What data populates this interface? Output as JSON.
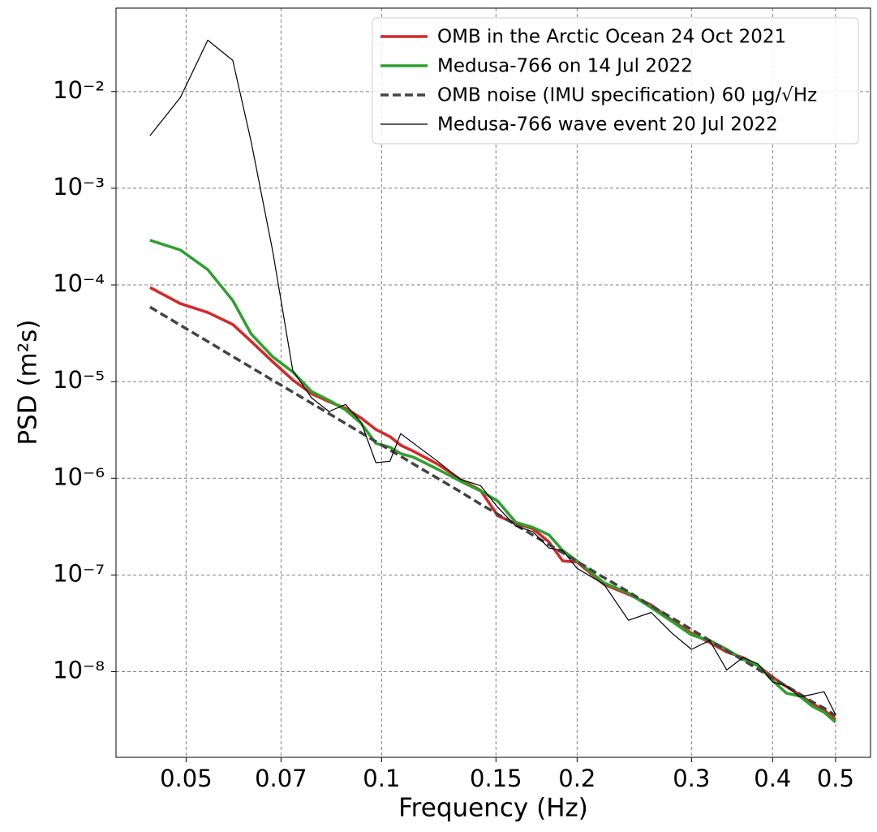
{
  "chart_data": {
    "type": "line",
    "xlabel": "Frequency (Hz)",
    "ylabel": "PSD (m²s)",
    "xscale": "log",
    "yscale": "log",
    "xlim": [
      0.039,
      0.566
    ],
    "ylim": [
      1.3e-09,
      0.073
    ],
    "xticks": [
      0.05,
      0.07,
      0.1,
      0.15,
      0.2,
      0.3,
      0.4,
      0.5
    ],
    "yticks": [
      {
        "value": 1e-08,
        "label": "10⁻⁸"
      },
      {
        "value": 1e-07,
        "label": "10⁻⁷"
      },
      {
        "value": 1e-06,
        "label": "10⁻⁶"
      },
      {
        "value": 1e-05,
        "label": "10⁻⁵"
      },
      {
        "value": 0.0001,
        "label": "10⁻⁴"
      },
      {
        "value": 0.001,
        "label": "10⁻³"
      },
      {
        "value": 0.01,
        "label": "10⁻²"
      }
    ],
    "grid": true,
    "legend": "upper right",
    "x": [
      0.044,
      0.049,
      0.054,
      0.059,
      0.063,
      0.068,
      0.073,
      0.078,
      0.083,
      0.088,
      0.093,
      0.098,
      0.103,
      0.107,
      0.112,
      0.122,
      0.132,
      0.142,
      0.151,
      0.161,
      0.171,
      0.181,
      0.19,
      0.2,
      0.22,
      0.24,
      0.26,
      0.28,
      0.3,
      0.32,
      0.34,
      0.36,
      0.38,
      0.4,
      0.42,
      0.44,
      0.46,
      0.48,
      0.5
    ],
    "series": [
      {
        "name": "OMB in the Arctic Ocean 24 Oct 2021",
        "color": "#d62728",
        "linewidth": 3.5,
        "dashed": false,
        "values": [
          9.4e-05,
          6.4e-05,
          5.2e-05,
          3.9e-05,
          2.6e-05,
          1.6e-05,
          1.04e-05,
          7.5e-06,
          6.2e-06,
          5.3e-06,
          4.2e-06,
          3.2e-06,
          2.7e-06,
          2.2e-06,
          1.9e-06,
          1.4e-06,
          9.8e-07,
          7.5e-07,
          4.1e-07,
          3.4e-07,
          3e-07,
          2.2e-07,
          1.4e-07,
          1.36e-07,
          8e-08,
          6.3e-08,
          4.9e-08,
          3.4e-08,
          2.5e-08,
          2e-08,
          1.6e-08,
          1.4e-08,
          1.15e-08,
          8.8e-09,
          7e-09,
          5.8e-09,
          4.7e-09,
          4e-09,
          3.2e-09
        ]
      },
      {
        "name": "Medusa-766 on 14 Jul 2022",
        "color": "#2ca02c",
        "linewidth": 3.5,
        "dashed": false,
        "values": [
          0.00029,
          0.00023,
          0.000144,
          6.9e-05,
          3.1e-05,
          1.8e-05,
          1.26e-05,
          7.9e-06,
          6.4e-06,
          5.1e-06,
          3.7e-06,
          2.3e-06,
          2.1e-06,
          1.8e-06,
          1.65e-06,
          1.24e-06,
          9.4e-07,
          7.4e-07,
          5.8e-07,
          3.5e-07,
          3.1e-07,
          2.6e-07,
          1.8e-07,
          1.4e-07,
          8.3e-08,
          6.5e-08,
          4.6e-08,
          3.3e-08,
          2.4e-08,
          2.1e-08,
          1.7e-08,
          1.34e-08,
          1.15e-08,
          8.1e-09,
          6e-09,
          5.6e-09,
          4.4e-09,
          3.8e-09,
          3e-09
        ]
      },
      {
        "name": "OMB noise (IMU specification) 60 µg/√Hz",
        "color": "#444444",
        "linewidth": 3.5,
        "dashed": true,
        "values": [
          5.9e-05,
          3.83e-05,
          2.6e-05,
          1.82e-05,
          1.4e-05,
          1.03e-05,
          7.8e-06,
          5.97e-06,
          4.66e-06,
          3.69e-06,
          2.95e-06,
          2.4e-06,
          1.96e-06,
          1.69e-06,
          1.4e-06,
          1e-06,
          7.3e-07,
          5.4e-07,
          4.25e-07,
          3.29e-07,
          2.58e-07,
          2.06e-07,
          1.7e-07,
          1.38e-07,
          9.4e-08,
          6.7e-08,
          4.8e-08,
          3.6e-08,
          2.73e-08,
          2.1e-08,
          1.65e-08,
          1.32e-08,
          1.06e-08,
          8.6e-09,
          7.1e-09,
          5.9e-09,
          4.9e-09,
          4.2e-09,
          3.5e-09
        ]
      },
      {
        "name": "Medusa-766 wave event 20 Jul 2022",
        "color": "#000000",
        "linewidth": 1.2,
        "dashed": false,
        "values": [
          0.0035,
          0.0087,
          0.034,
          0.021,
          0.003,
          0.00022,
          1.3e-05,
          6.8e-06,
          4.9e-06,
          5.8e-06,
          3.8e-06,
          1.45e-06,
          1.5e-06,
          2.9e-06,
          2.3e-06,
          1.5e-06,
          9.8e-07,
          8.4e-07,
          5e-07,
          3.2e-07,
          2.8e-07,
          1.9e-07,
          1.8e-07,
          1.17e-07,
          8e-08,
          3.4e-08,
          4.1e-08,
          2.5e-08,
          1.7e-08,
          2.1e-08,
          1.04e-08,
          1.4e-08,
          1.2e-08,
          7.8e-09,
          7.1e-09,
          5.5e-09,
          5.8e-09,
          6.2e-09,
          3.6e-09
        ]
      }
    ]
  }
}
